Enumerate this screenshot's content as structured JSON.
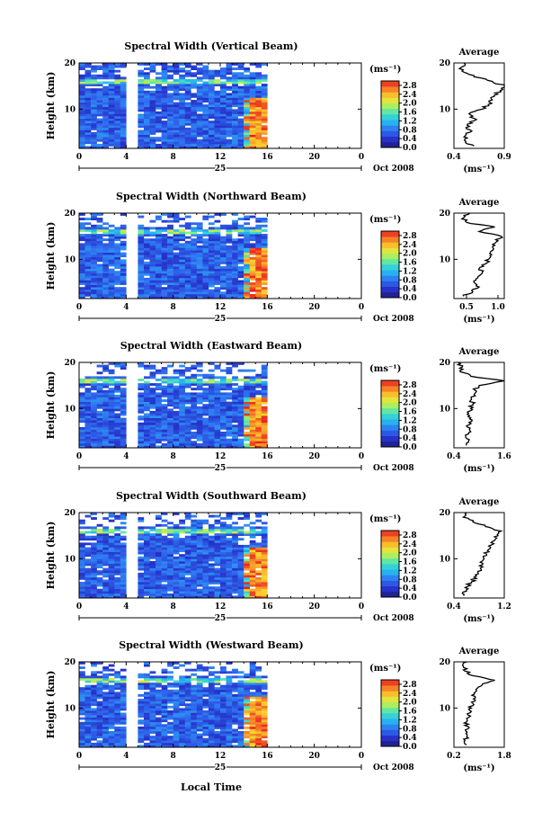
{
  "figure": {
    "xlabel": "Local Time",
    "ylabel": "Height (km)",
    "unit_label": "(ms⁻¹)",
    "average_title": "Average",
    "date_label": "Oct 2008",
    "day_label": "25"
  },
  "chart_data": [
    {
      "type": "heatmap",
      "title": "Spectral Width (Vertical Beam)",
      "xlabel": "",
      "ylabel": "Height (km)",
      "x_ticks": [
        "0",
        "4",
        "8",
        "12",
        "16",
        "20",
        "0"
      ],
      "y_ticks": [
        "10",
        "20"
      ],
      "xlim": [
        0,
        24
      ],
      "ylim": [
        1.5,
        20
      ],
      "colorbar": {
        "ticks": [
          "0.0",
          "0.4",
          "0.8",
          "1.2",
          "1.6",
          "2.0",
          "2.4",
          "2.8"
        ],
        "range": [
          0,
          3.0
        ]
      },
      "data_gaps_hours": [
        [
          4.0,
          4.9
        ],
        [
          15.35,
          15.75
        ],
        [
          15.95,
          24
        ]
      ],
      "high_width_hours": [
        14.0,
        15.8
      ],
      "average_profile": {
        "xlim": [
          0.4,
          0.9
        ],
        "x_ticks": [
          "0.4",
          "0.9"
        ],
        "y_ticks": [
          "10",
          "20"
        ],
        "height_km": [
          2,
          3,
          4,
          5,
          6,
          7,
          8,
          9,
          10,
          11,
          12,
          13,
          14,
          15,
          16,
          17,
          18,
          19,
          20
        ],
        "width_ms": [
          0.6,
          0.52,
          0.5,
          0.56,
          0.52,
          0.58,
          0.6,
          0.55,
          0.68,
          0.74,
          0.78,
          0.8,
          0.86,
          0.9,
          0.78,
          0.6,
          0.5,
          0.47,
          0.5
        ]
      }
    },
    {
      "type": "heatmap",
      "title": "Spectral Width (Northward Beam)",
      "xlabel": "",
      "ylabel": "Height (km)",
      "x_ticks": [
        "0",
        "4",
        "8",
        "12",
        "16",
        "20",
        "0"
      ],
      "y_ticks": [
        "10",
        "20"
      ],
      "xlim": [
        0,
        24
      ],
      "ylim": [
        1.5,
        20
      ],
      "colorbar": {
        "ticks": [
          "0.0",
          "0.4",
          "0.8",
          "1.2",
          "1.6",
          "2.0",
          "2.4",
          "2.8"
        ],
        "range": [
          0,
          3.0
        ]
      },
      "data_gaps_hours": [
        [
          4.0,
          4.9
        ],
        [
          15.35,
          15.75
        ],
        [
          15.95,
          24
        ]
      ],
      "high_width_hours": [
        14.0,
        15.8
      ],
      "average_profile": {
        "xlim": [
          0.3,
          1.1
        ],
        "x_ticks": [
          "0.5",
          "1.0"
        ],
        "y_ticks": [
          "10",
          "20"
        ],
        "height_km": [
          2,
          3,
          4,
          5,
          6,
          7,
          8,
          9,
          10,
          11,
          12,
          13,
          14,
          15,
          16,
          17,
          18,
          19,
          20
        ],
        "width_ms": [
          0.45,
          0.6,
          0.7,
          0.62,
          0.68,
          0.75,
          0.7,
          0.8,
          0.85,
          0.9,
          0.92,
          0.95,
          1.0,
          1.05,
          0.7,
          0.95,
          0.5,
          0.45,
          0.55
        ]
      }
    },
    {
      "type": "heatmap",
      "title": "Spectral Width (Eastward Beam)",
      "xlabel": "",
      "ylabel": "Height (km)",
      "x_ticks": [
        "0",
        "4",
        "8",
        "12",
        "16",
        "20",
        "0"
      ],
      "y_ticks": [
        "10",
        "20"
      ],
      "xlim": [
        0,
        24
      ],
      "ylim": [
        1.5,
        20
      ],
      "colorbar": {
        "ticks": [
          "0.0",
          "0.4",
          "0.8",
          "1.2",
          "1.6",
          "2.0",
          "2.4",
          "2.8"
        ],
        "range": [
          0,
          3.0
        ]
      },
      "data_gaps_hours": [
        [
          4.0,
          4.9
        ],
        [
          15.35,
          15.75
        ],
        [
          15.95,
          24
        ]
      ],
      "high_width_hours": [
        14.0,
        15.8
      ],
      "average_profile": {
        "xlim": [
          0.4,
          1.6
        ],
        "x_ticks": [
          "0.4",
          "1.6"
        ],
        "y_ticks": [
          "10",
          "20"
        ],
        "height_km": [
          2,
          3,
          4,
          5,
          6,
          7,
          8,
          9,
          10,
          11,
          12,
          13,
          14,
          15,
          16,
          17,
          18,
          19,
          20
        ],
        "width_ms": [
          0.7,
          0.75,
          0.68,
          0.8,
          0.72,
          0.76,
          0.8,
          0.75,
          0.8,
          0.85,
          0.82,
          0.88,
          0.9,
          1.0,
          1.6,
          0.8,
          0.55,
          0.6,
          0.5
        ]
      }
    },
    {
      "type": "heatmap",
      "title": "Spectral Width (Southward Beam)",
      "xlabel": "",
      "ylabel": "Height (km)",
      "x_ticks": [
        "0",
        "4",
        "8",
        "12",
        "16",
        "20",
        "0"
      ],
      "y_ticks": [
        "10",
        "20"
      ],
      "xlim": [
        0,
        24
      ],
      "ylim": [
        1.5,
        20
      ],
      "colorbar": {
        "ticks": [
          "0.0",
          "0.4",
          "0.8",
          "1.2",
          "1.6",
          "2.0",
          "2.4",
          "2.8"
        ],
        "range": [
          0,
          3.0
        ]
      },
      "data_gaps_hours": [
        [
          4.0,
          4.9
        ],
        [
          15.35,
          15.75
        ],
        [
          15.95,
          24
        ]
      ],
      "high_width_hours": [
        14.0,
        15.8
      ],
      "average_profile": {
        "xlim": [
          0.4,
          1.2
        ],
        "x_ticks": [
          "0.4",
          "1.2"
        ],
        "y_ticks": [
          "10",
          "20"
        ],
        "height_km": [
          2,
          3,
          4,
          5,
          6,
          7,
          8,
          9,
          10,
          11,
          12,
          13,
          14,
          15,
          16,
          17,
          18,
          19,
          20
        ],
        "width_ms": [
          0.55,
          0.6,
          0.62,
          0.68,
          0.72,
          0.78,
          0.82,
          0.86,
          0.88,
          0.92,
          0.95,
          1.0,
          1.05,
          1.1,
          1.15,
          0.9,
          0.7,
          0.55,
          0.6
        ]
      }
    },
    {
      "type": "heatmap",
      "title": "Spectral Width (Westward Beam)",
      "xlabel": "Local Time",
      "ylabel": "Height (km)",
      "x_ticks": [
        "0",
        "4",
        "8",
        "12",
        "16",
        "20",
        "0"
      ],
      "y_ticks": [
        "10",
        "20"
      ],
      "xlim": [
        0,
        24
      ],
      "ylim": [
        1.5,
        20
      ],
      "colorbar": {
        "ticks": [
          "0.0",
          "0.4",
          "0.8",
          "1.2",
          "1.6",
          "2.0",
          "2.4",
          "2.8"
        ],
        "range": [
          0,
          3.0
        ]
      },
      "data_gaps_hours": [
        [
          4.0,
          4.9
        ],
        [
          15.35,
          15.75
        ],
        [
          15.95,
          24
        ]
      ],
      "high_width_hours": [
        14.0,
        15.8
      ],
      "average_profile": {
        "xlim": [
          0.2,
          1.8
        ],
        "x_ticks": [
          "0.2",
          "1.8"
        ],
        "y_ticks": [
          "10",
          "20"
        ],
        "height_km": [
          2,
          3,
          4,
          5,
          6,
          7,
          8,
          9,
          10,
          11,
          12,
          13,
          14,
          15,
          16,
          17,
          18,
          19,
          20
        ],
        "width_ms": [
          0.6,
          0.55,
          0.62,
          0.58,
          0.65,
          0.6,
          0.68,
          0.72,
          0.75,
          0.8,
          0.82,
          0.85,
          0.9,
          1.1,
          1.5,
          0.8,
          0.55,
          0.5,
          0.6
        ]
      }
    }
  ]
}
